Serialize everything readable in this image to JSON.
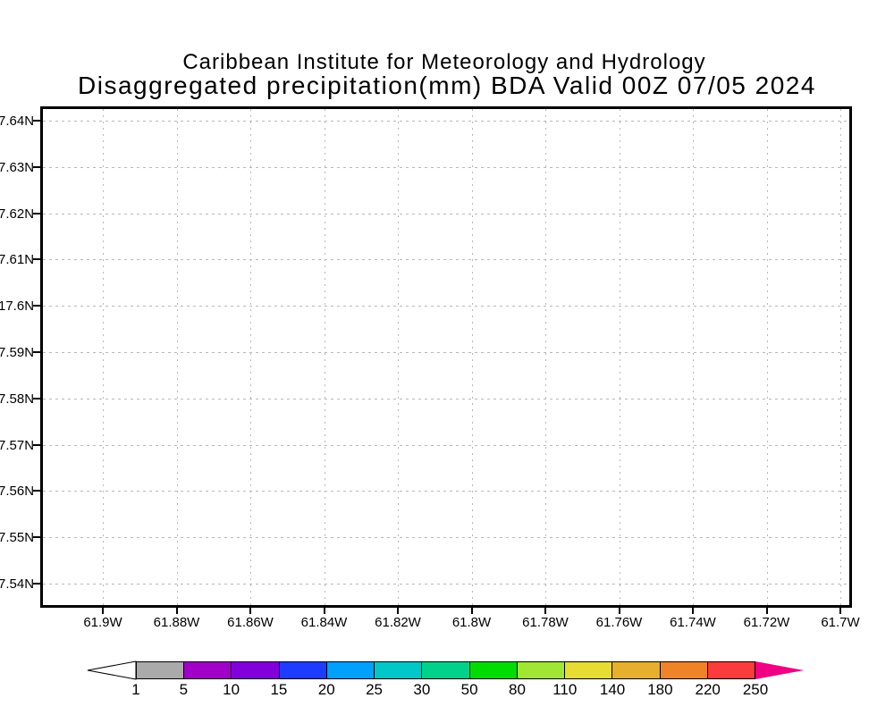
{
  "header": {
    "institution": "Caribbean Institute for Meteorology and Hydrology",
    "title": "Disaggregated precipitation(mm) BDA Valid 00Z 07/05 2024"
  },
  "axes": {
    "y_labels": [
      "7.64N",
      "7.63N",
      "7.62N",
      "7.61N",
      "17.6N",
      "7.59N",
      "7.58N",
      "7.57N",
      "7.56N",
      "7.55N",
      "7.54N"
    ],
    "x_labels": [
      "61.9W",
      "61.88W",
      "61.86W",
      "61.84W",
      "61.82W",
      "61.8W",
      "61.78W",
      "61.76W",
      "61.74W",
      "61.72W",
      "61.7W"
    ]
  },
  "colorbar": {
    "labels": [
      "1",
      "5",
      "10",
      "15",
      "20",
      "25",
      "30",
      "50",
      "80",
      "110",
      "140",
      "180",
      "220",
      "250"
    ],
    "segment_colors": [
      "#aaaaaa",
      "#a000c8",
      "#8200dc",
      "#1e3cff",
      "#00a0ff",
      "#00c8c8",
      "#00d28c",
      "#00dc00",
      "#a0e632",
      "#e6dc32",
      "#e6af2d",
      "#f08228",
      "#fa3c3c"
    ],
    "left_arrow_color": "#ffffff",
    "right_arrow_color": "#f00082",
    "outline_color": "#000000"
  },
  "chart_data": {
    "type": "heatmap",
    "title": "Disaggregated precipitation(mm) BDA Valid 00Z 07/05 2024",
    "subtitle": "Caribbean Institute for Meteorology and Hydrology",
    "region": "BDA",
    "valid_time": "00Z 07/05 2024",
    "units": "mm",
    "x_tick_labels": [
      "61.9W",
      "61.88W",
      "61.86W",
      "61.84W",
      "61.82W",
      "61.8W",
      "61.78W",
      "61.76W",
      "61.74W",
      "61.72W",
      "61.7W"
    ],
    "y_tick_labels": [
      "7.64N",
      "7.63N",
      "7.62N",
      "7.61N",
      "17.6N",
      "7.59N",
      "7.58N",
      "7.57N",
      "7.56N",
      "7.55N",
      "7.54N"
    ],
    "grid": "dotted",
    "legend_position": "bottom",
    "values": [],
    "note": "No precipitation shading or contours are drawn; the map field is empty",
    "colorbar": {
      "levels": [
        1,
        5,
        10,
        15,
        20,
        25,
        30,
        50,
        80,
        110,
        140,
        180,
        220,
        250
      ],
      "segment_colors": [
        "#aaaaaa",
        "#a000c8",
        "#8200dc",
        "#1e3cff",
        "#00a0ff",
        "#00c8c8",
        "#00d28c",
        "#00dc00",
        "#a0e632",
        "#e6dc32",
        "#e6af2d",
        "#f08228",
        "#fa3c3c"
      ],
      "below_min_color": "#ffffff",
      "above_max_color": "#f00082"
    }
  }
}
